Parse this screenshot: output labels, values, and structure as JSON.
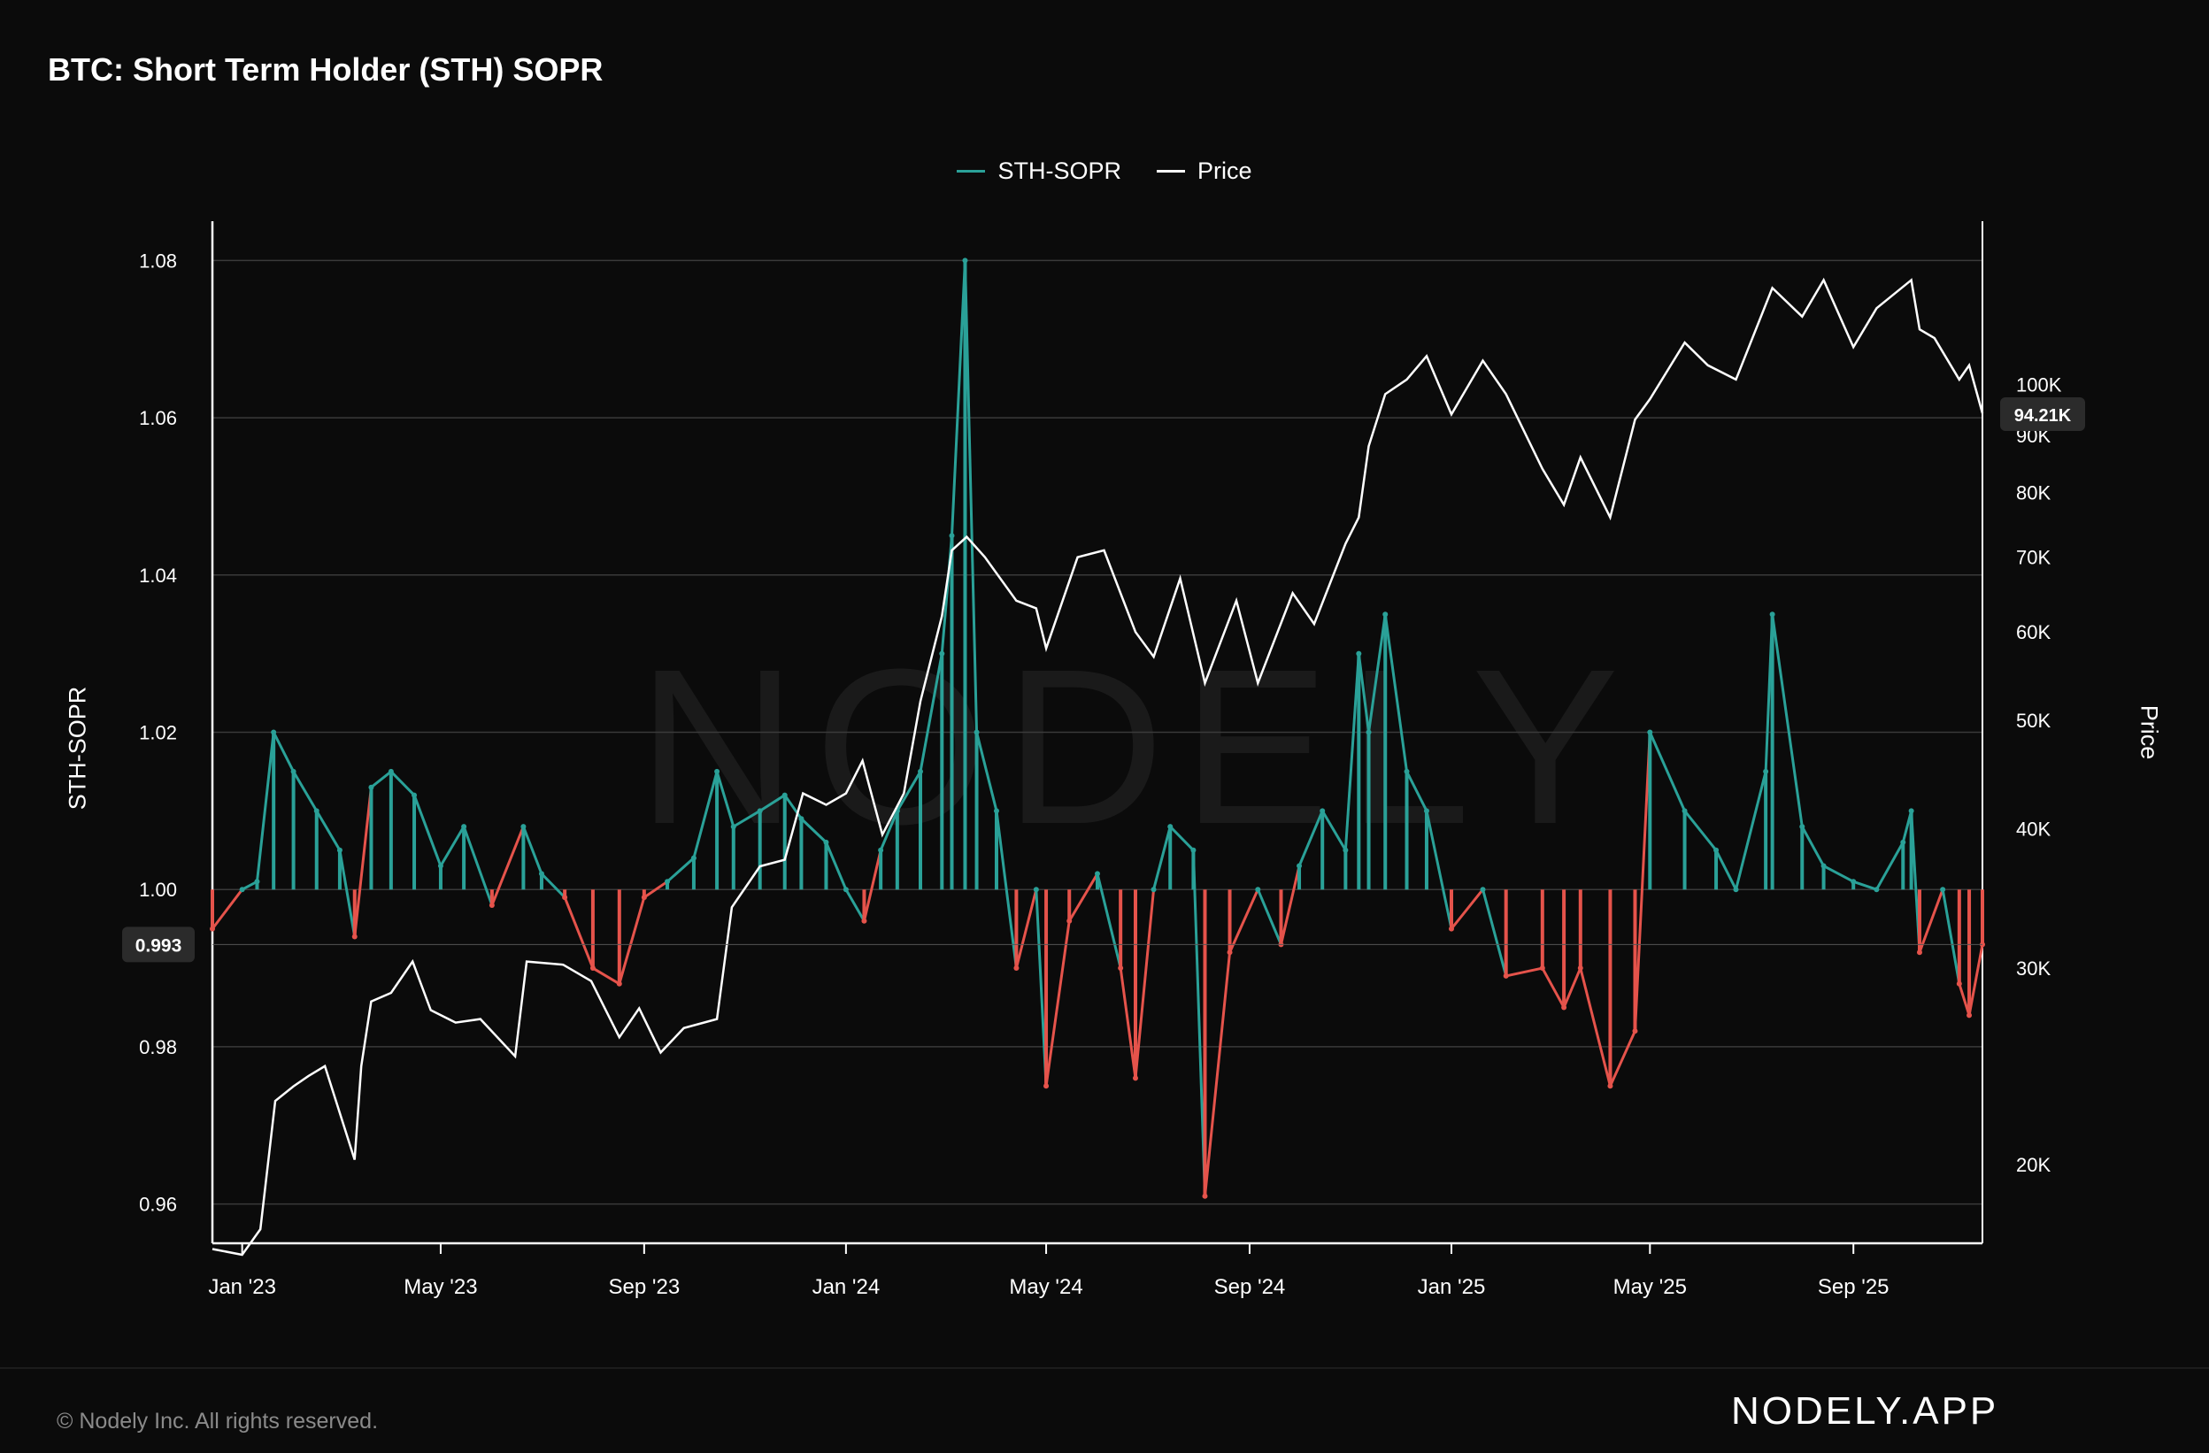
{
  "title": "BTC: Short Term Holder (STH) SOPR",
  "watermark": "NODELY",
  "footer": {
    "copyright": "© Nodely Inc. All rights reserved.",
    "brand": "NODELY.APP"
  },
  "colors": {
    "background": "#0b0b0b",
    "sopr_above": "#2aa198",
    "sopr_below": "#e5534b",
    "price": "#ffffff",
    "grid": "#3a3a3a"
  },
  "chart_data": {
    "type": "line",
    "title": "BTC: Short Term Holder (STH) SOPR",
    "legend_position": "top-center",
    "grid": true,
    "left_axis": {
      "label": "STH-SOPR",
      "ylim": [
        0.955,
        1.085
      ],
      "ticks": [
        1.08,
        1.06,
        1.04,
        1.02,
        1.0,
        0.98,
        0.96
      ],
      "tick_labels": [
        "1.08",
        "1.06",
        "1.04",
        "1.02",
        "1.00",
        "0.98",
        "0.96"
      ]
    },
    "right_axis": {
      "label": "Price",
      "scale": "log",
      "ylim": [
        17000,
        140000
      ],
      "ticks": [
        20000,
        30000,
        40000,
        50000,
        60000,
        70000,
        80000,
        90000,
        100000
      ],
      "tick_labels": [
        "20K",
        "30K",
        "40K",
        "50K",
        "60K",
        "70K",
        "80K",
        "90K",
        "100K"
      ]
    },
    "x_axis": {
      "range": [
        "2022-12-14",
        "2025-11-18"
      ],
      "ticks": [
        "2023-01-01",
        "2023-05-01",
        "2023-09-01",
        "2024-01-01",
        "2024-05-01",
        "2024-09-01",
        "2025-01-01",
        "2025-05-01",
        "2025-09-01"
      ],
      "tick_labels": [
        "Jan '23",
        "May '23",
        "Sep '23",
        "Jan '24",
        "May '24",
        "Sep '24",
        "Jan '25",
        "May '25",
        "Sep '25"
      ]
    },
    "current_values": {
      "sopr": "0.993",
      "price": "94.21K"
    },
    "series": [
      {
        "name": "STH-SOPR",
        "axis": "left",
        "baseline": 1.0,
        "x": [
          "2022-12-14",
          "2023-01-01",
          "2023-01-10",
          "2023-01-20",
          "2023-02-01",
          "2023-02-15",
          "2023-03-01",
          "2023-03-10",
          "2023-03-20",
          "2023-04-01",
          "2023-04-15",
          "2023-05-01",
          "2023-05-15",
          "2023-06-01",
          "2023-06-20",
          "2023-07-01",
          "2023-07-15",
          "2023-08-01",
          "2023-08-17",
          "2023-09-01",
          "2023-09-15",
          "2023-10-01",
          "2023-10-15",
          "2023-10-25",
          "2023-11-10",
          "2023-11-25",
          "2023-12-05",
          "2023-12-20",
          "2024-01-01",
          "2024-01-12",
          "2024-01-22",
          "2024-02-01",
          "2024-02-15",
          "2024-02-28",
          "2024-03-05",
          "2024-03-13",
          "2024-03-20",
          "2024-04-01",
          "2024-04-13",
          "2024-04-25",
          "2024-05-01",
          "2024-05-15",
          "2024-06-01",
          "2024-06-15",
          "2024-06-24",
          "2024-07-05",
          "2024-07-15",
          "2024-07-29",
          "2024-08-05",
          "2024-08-20",
          "2024-09-06",
          "2024-09-20",
          "2024-10-01",
          "2024-10-15",
          "2024-10-29",
          "2024-11-06",
          "2024-11-12",
          "2024-11-22",
          "2024-12-05",
          "2024-12-17",
          "2025-01-01",
          "2025-01-20",
          "2025-02-03",
          "2025-02-25",
          "2025-03-10",
          "2025-03-20",
          "2025-04-07",
          "2025-04-22",
          "2025-05-01",
          "2025-05-22",
          "2025-06-10",
          "2025-06-22",
          "2025-07-10",
          "2025-07-14",
          "2025-08-01",
          "2025-08-14",
          "2025-09-01",
          "2025-09-15",
          "2025-10-01",
          "2025-10-06",
          "2025-10-11",
          "2025-10-25",
          "2025-11-04",
          "2025-11-10",
          "2025-11-18"
        ],
        "values": [
          0.995,
          1.0,
          1.001,
          1.02,
          1.015,
          1.01,
          1.005,
          0.994,
          1.013,
          1.015,
          1.012,
          1.003,
          1.008,
          0.998,
          1.008,
          1.002,
          0.999,
          0.99,
          0.988,
          0.999,
          1.001,
          1.004,
          1.015,
          1.008,
          1.01,
          1.012,
          1.009,
          1.006,
          1.0,
          0.996,
          1.005,
          1.01,
          1.015,
          1.03,
          1.045,
          1.08,
          1.02,
          1.01,
          0.99,
          1.0,
          0.975,
          0.996,
          1.002,
          0.99,
          0.976,
          1.0,
          1.008,
          1.005,
          0.961,
          0.992,
          1.0,
          0.993,
          1.003,
          1.01,
          1.005,
          1.03,
          1.02,
          1.035,
          1.015,
          1.01,
          0.995,
          1.0,
          0.989,
          0.99,
          0.985,
          0.99,
          0.975,
          0.982,
          1.02,
          1.01,
          1.005,
          1.0,
          1.015,
          1.035,
          1.008,
          1.003,
          1.001,
          1.0,
          1.006,
          1.01,
          0.992,
          1.0,
          0.988,
          0.984,
          0.993
        ]
      },
      {
        "name": "Price",
        "axis": "right",
        "x": [
          "2022-12-14",
          "2023-01-01",
          "2023-01-12",
          "2023-01-21",
          "2023-02-01",
          "2023-02-10",
          "2023-02-20",
          "2023-03-10",
          "2023-03-14",
          "2023-03-20",
          "2023-04-01",
          "2023-04-14",
          "2023-04-25",
          "2023-05-10",
          "2023-05-25",
          "2023-06-15",
          "2023-06-22",
          "2023-07-14",
          "2023-07-31",
          "2023-08-17",
          "2023-08-29",
          "2023-09-11",
          "2023-09-25",
          "2023-10-15",
          "2023-10-24",
          "2023-11-10",
          "2023-11-25",
          "2023-12-06",
          "2023-12-20",
          "2024-01-01",
          "2024-01-11",
          "2024-01-23",
          "2024-02-05",
          "2024-02-15",
          "2024-02-28",
          "2024-03-05",
          "2024-03-14",
          "2024-03-25",
          "2024-04-13",
          "2024-04-25",
          "2024-05-01",
          "2024-05-20",
          "2024-06-05",
          "2024-06-24",
          "2024-07-05",
          "2024-07-21",
          "2024-08-05",
          "2024-08-24",
          "2024-09-06",
          "2024-09-27",
          "2024-10-10",
          "2024-10-29",
          "2024-11-06",
          "2024-11-12",
          "2024-11-22",
          "2024-12-05",
          "2024-12-17",
          "2025-01-01",
          "2025-01-20",
          "2025-02-03",
          "2025-02-25",
          "2025-03-10",
          "2025-03-20",
          "2025-04-07",
          "2025-04-22",
          "2025-05-01",
          "2025-05-22",
          "2025-06-05",
          "2025-06-22",
          "2025-07-14",
          "2025-08-01",
          "2025-08-14",
          "2025-09-01",
          "2025-09-15",
          "2025-10-06",
          "2025-10-11",
          "2025-10-20",
          "2025-11-04",
          "2025-11-10",
          "2025-11-18"
        ],
        "values": [
          16800,
          16600,
          17500,
          22800,
          23500,
          24000,
          24500,
          20200,
          24500,
          28000,
          28500,
          30400,
          27500,
          26800,
          27000,
          25000,
          30400,
          30200,
          29200,
          26000,
          27600,
          25200,
          26500,
          27000,
          34000,
          37000,
          37500,
          43000,
          42000,
          43000,
          46000,
          39500,
          43000,
          52000,
          62000,
          71000,
          73000,
          70000,
          64000,
          63000,
          58000,
          70000,
          71000,
          60000,
          57000,
          67000,
          54000,
          64000,
          54000,
          65000,
          61000,
          72000,
          76000,
          88000,
          98000,
          101000,
          106000,
          94000,
          105000,
          98000,
          84000,
          78000,
          86000,
          76000,
          93000,
          97000,
          109000,
          104000,
          101000,
          122000,
          115000,
          124000,
          108000,
          117000,
          124000,
          112000,
          110000,
          101000,
          104000,
          94210
        ]
      }
    ]
  }
}
